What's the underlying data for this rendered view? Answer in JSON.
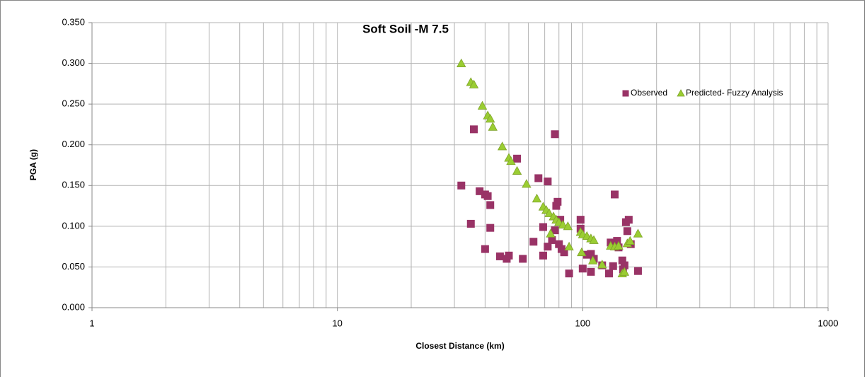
{
  "chart_data": {
    "type": "scatter",
    "title": "Soft Soil -M 7.5",
    "x_label": "Closest Distance (km)",
    "y_label": "PGA (g)",
    "x_scale": "log",
    "grid": true,
    "minor_grid": true,
    "legend": "upper right",
    "xlim": [
      1,
      1000
    ],
    "xticks": [
      1,
      10,
      100,
      1000
    ],
    "ylim": [
      0,
      0.35
    ],
    "yticks": [
      {
        "value": 0,
        "label": "0.000"
      },
      {
        "value": 0.05,
        "label": "0.050"
      },
      {
        "value": 0.1,
        "label": "0.100"
      },
      {
        "value": 0.15,
        "label": "0.150"
      },
      {
        "value": 0.2,
        "label": "0.200"
      },
      {
        "value": 0.25,
        "label": "0.250"
      },
      {
        "value": 0.3,
        "label": "0.300"
      },
      {
        "value": 0.35,
        "label": "0.350"
      }
    ],
    "series": [
      {
        "name": "Observed",
        "color": "#993366",
        "marker": "square",
        "x": [
          32,
          36,
          35,
          38,
          40,
          41,
          40,
          42,
          42,
          46,
          49,
          50,
          54,
          57,
          63,
          66,
          69,
          69,
          72,
          72,
          75,
          77,
          77,
          78,
          79,
          80,
          81,
          82,
          84,
          88,
          98,
          98,
          100,
          104,
          108,
          108,
          111,
          120,
          128,
          130,
          133,
          135,
          138,
          140,
          145,
          146,
          148,
          150,
          152,
          154,
          157,
          168
        ],
        "values": [
          0.15,
          0.219,
          0.103,
          0.143,
          0.139,
          0.137,
          0.072,
          0.098,
          0.126,
          0.063,
          0.06,
          0.064,
          0.183,
          0.06,
          0.081,
          0.159,
          0.099,
          0.064,
          0.155,
          0.075,
          0.083,
          0.213,
          0.095,
          0.125,
          0.13,
          0.078,
          0.108,
          0.072,
          0.068,
          0.042,
          0.108,
          0.097,
          0.048,
          0.065,
          0.044,
          0.066,
          0.06,
          0.052,
          0.042,
          0.08,
          0.051,
          0.139,
          0.082,
          0.074,
          0.058,
          0.047,
          0.052,
          0.105,
          0.094,
          0.108,
          0.078,
          0.045
        ]
      },
      {
        "name": "Predicted- Fuzzy Analysis",
        "color": "#9acd32",
        "marker": "triangle",
        "x": [
          32,
          35,
          36,
          39,
          41,
          42,
          43,
          47,
          50,
          51,
          54,
          59,
          65,
          69,
          71,
          73,
          74,
          76,
          78,
          80,
          83,
          87,
          88,
          98,
          99,
          100,
          104,
          108,
          110,
          111,
          120,
          130,
          135,
          140,
          145,
          148,
          152,
          156,
          168
        ],
        "values": [
          0.3,
          0.277,
          0.274,
          0.248,
          0.236,
          0.232,
          0.222,
          0.198,
          0.184,
          0.18,
          0.168,
          0.152,
          0.134,
          0.124,
          0.12,
          0.116,
          0.091,
          0.112,
          0.108,
          0.105,
          0.102,
          0.1,
          0.075,
          0.093,
          0.068,
          0.09,
          0.088,
          0.085,
          0.058,
          0.083,
          0.053,
          0.076,
          0.075,
          0.076,
          0.042,
          0.044,
          0.079,
          0.082,
          0.091
        ]
      }
    ]
  }
}
